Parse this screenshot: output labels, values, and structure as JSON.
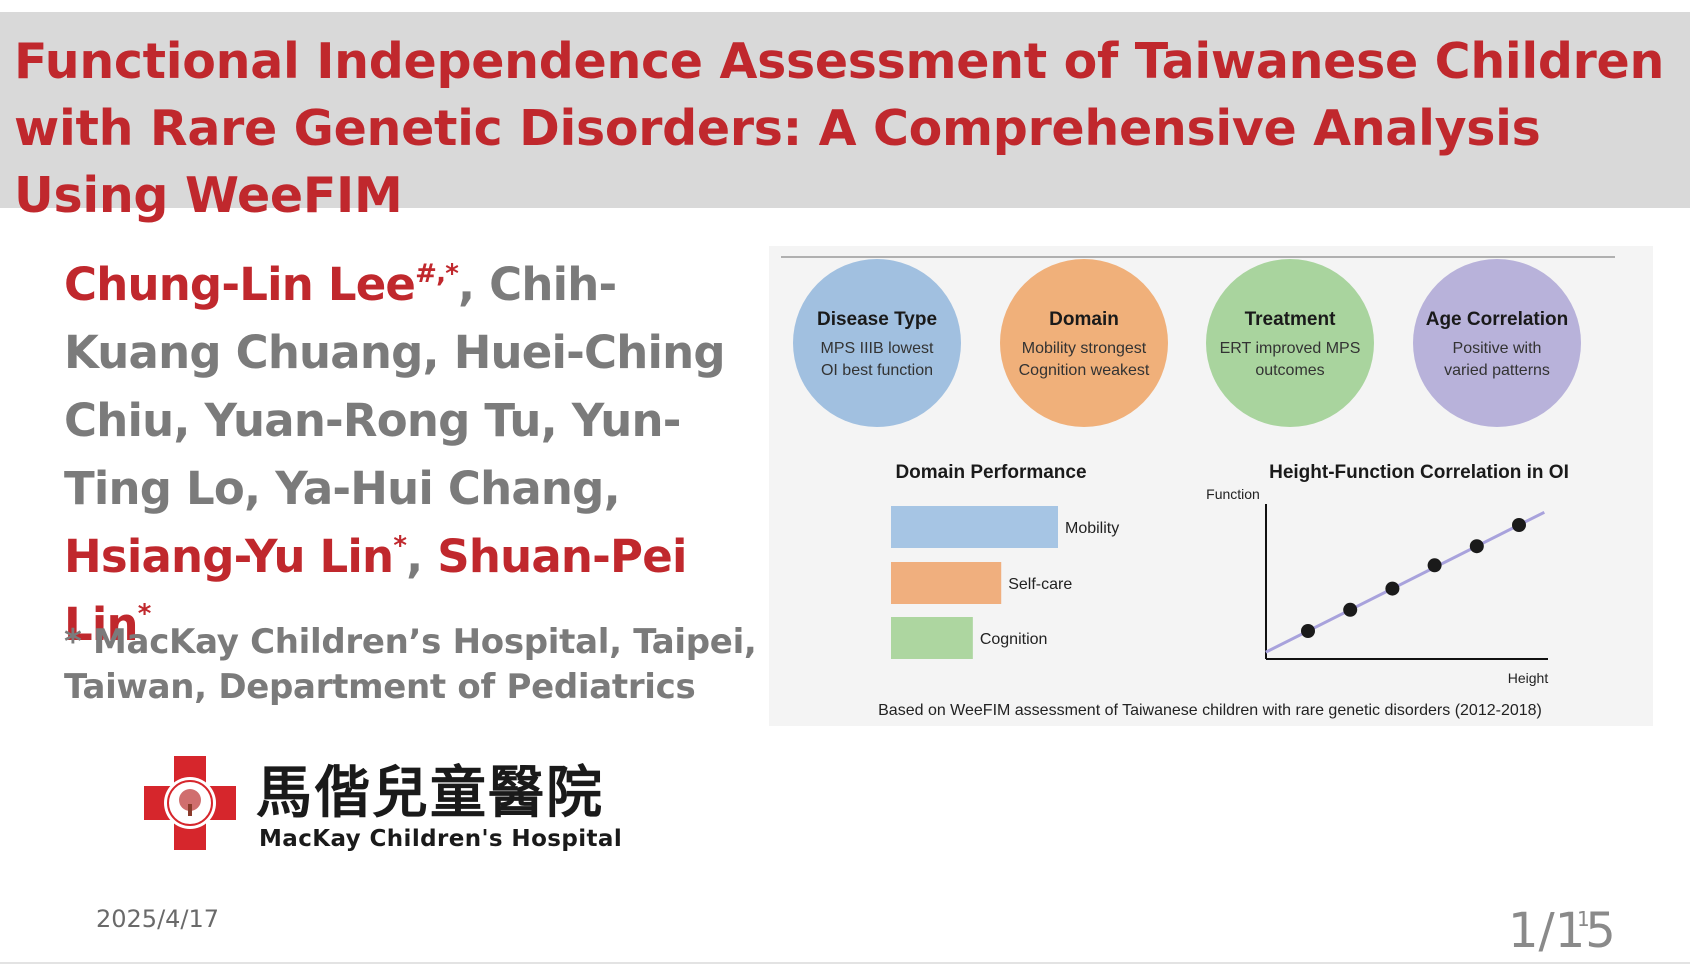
{
  "slide": {
    "title": "Functional Independence Assessment of Taiwanese Children with Rare Genetic Disorders: A Comprehensive Analysis Using WeeFIM",
    "authors": [
      {
        "name": "Chung-Lin Lee",
        "mark": "#,*",
        "highlight": true,
        "sep": ", "
      },
      {
        "name": "Chih-Kuang Chuang",
        "mark": "",
        "highlight": false,
        "sep": ", "
      },
      {
        "name": "Huei-Ching Chiu",
        "mark": "",
        "highlight": false,
        "sep": ", "
      },
      {
        "name": "Yuan-Rong Tu",
        "mark": "",
        "highlight": false,
        "sep": ", "
      },
      {
        "name": "Yun-Ting Lo",
        "mark": "",
        "highlight": false,
        "sep": ", "
      },
      {
        "name": "Ya-Hui Chang",
        "mark": "",
        "highlight": false,
        "sep": ", "
      },
      {
        "name": "Hsiang-Yu Lin",
        "mark": "*",
        "highlight": true,
        "sep": ", "
      },
      {
        "name": "Shuan-Pei Lin",
        "mark": "*",
        "highlight": true,
        "sep": ""
      }
    ],
    "affiliation": "* MacKay Children’s Hospital, Taipei, Taiwan, Department of Pediatrics",
    "logo": {
      "cn": "馬偕兒童醫院",
      "en": "MacKay Children's Hospital"
    },
    "date": "2025/4/17",
    "page_number": "1/15",
    "page_small": "1"
  },
  "figure": {
    "circles": [
      {
        "title": "Disease Type",
        "line1": "MPS IIIB lowest",
        "line2": "OI best function",
        "color": "#a1c0e0"
      },
      {
        "title": "Domain",
        "line1": "Mobility strongest",
        "line2": "Cognition weakest",
        "color": "#f0b07a"
      },
      {
        "title": "Treatment",
        "line1": "ERT improved MPS",
        "line2": "outcomes",
        "color": "#a9d49e"
      },
      {
        "title": "Age Correlation",
        "line1": "Positive with",
        "line2": "varied patterns",
        "color": "#b8b2da"
      }
    ],
    "footer": "Based on WeeFIM assessment of Taiwanese children with rare genetic disorders (2012-2018)"
  },
  "chart_data": [
    {
      "type": "bar",
      "orientation": "horizontal",
      "title": "Domain Performance",
      "categories": [
        "Mobility",
        "Self-care",
        "Cognition"
      ],
      "values": [
        100,
        66,
        49
      ],
      "colors": [
        "#a6c5e4",
        "#f0af7e",
        "#add6a0"
      ]
    },
    {
      "type": "scatter",
      "title": "Height-Function Correlation in OI",
      "xlabel": "Height",
      "ylabel": "Function",
      "x": [
        1,
        2,
        3,
        4,
        5,
        6
      ],
      "y": [
        1.0,
        2.0,
        3.0,
        4.1,
        5.0,
        6.0
      ],
      "trend": true,
      "point_color": "#1a1a1a",
      "trend_color": "#a8a2dc"
    }
  ]
}
